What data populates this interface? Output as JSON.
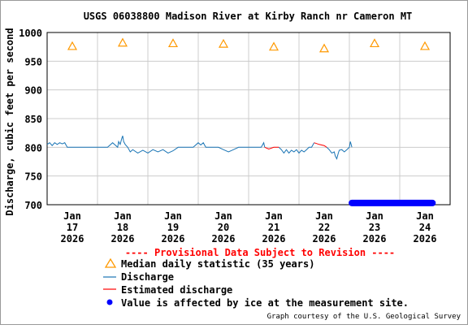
{
  "chart_data": {
    "type": "line",
    "title": "USGS 06038800 Madison River at Kirby Ranch nr Cameron MT",
    "xlabel": "",
    "ylabel": "Discharge, cubic feet per second",
    "ylim": [
      700,
      1000
    ],
    "yticks": [
      700,
      750,
      800,
      850,
      900,
      950,
      1000
    ],
    "xlim": [
      16.5,
      24.5
    ],
    "xticks": [
      {
        "x": 17,
        "lines": [
          "Jan",
          "17",
          "2026"
        ]
      },
      {
        "x": 18,
        "lines": [
          "Jan",
          "18",
          "2026"
        ]
      },
      {
        "x": 19,
        "lines": [
          "Jan",
          "19",
          "2026"
        ]
      },
      {
        "x": 20,
        "lines": [
          "Jan",
          "20",
          "2026"
        ]
      },
      {
        "x": 21,
        "lines": [
          "Jan",
          "21",
          "2026"
        ]
      },
      {
        "x": 22,
        "lines": [
          "Jan",
          "22",
          "2026"
        ]
      },
      {
        "x": 23,
        "lines": [
          "Jan",
          "23",
          "2026"
        ]
      },
      {
        "x": 24,
        "lines": [
          "Jan",
          "24",
          "2026"
        ]
      }
    ],
    "grid": true,
    "series": [
      {
        "name": "Median daily statistic (35 years)",
        "kind": "marker-triangle",
        "color": "#ff9900",
        "x": [
          17,
          18,
          19,
          20,
          21,
          22,
          23,
          24
        ],
        "y": [
          976,
          982,
          981,
          980,
          975,
          972,
          981,
          976
        ]
      },
      {
        "name": "Discharge",
        "kind": "line",
        "color": "#1a75b5",
        "x": [
          16.5,
          16.55,
          16.6,
          16.65,
          16.7,
          16.75,
          16.8,
          16.85,
          16.9,
          16.95,
          17.0,
          17.1,
          17.2,
          17.3,
          17.35,
          17.4,
          17.45,
          17.5,
          17.6,
          17.7,
          17.8,
          17.9,
          17.92,
          17.95,
          17.98,
          18.0,
          18.02,
          18.05,
          18.1,
          18.15,
          18.2,
          18.3,
          18.4,
          18.5,
          18.6,
          18.7,
          18.8,
          18.9,
          19.0,
          19.1,
          19.2,
          19.3,
          19.4,
          19.5,
          19.55,
          19.6,
          19.65,
          19.7,
          19.8,
          19.9,
          20.0,
          20.1,
          20.2,
          20.3,
          20.35,
          20.4,
          20.45,
          20.5,
          20.55,
          20.6,
          20.65,
          20.7,
          20.75,
          20.8,
          20.82
        ],
        "y": [
          805,
          808,
          803,
          808,
          805,
          808,
          806,
          808,
          800,
          800,
          800,
          800,
          800,
          800,
          800,
          800,
          800,
          800,
          800,
          800,
          808,
          800,
          810,
          805,
          815,
          820,
          810,
          805,
          800,
          792,
          796,
          790,
          795,
          790,
          796,
          792,
          796,
          790,
          794,
          800,
          800,
          800,
          800,
          808,
          804,
          808,
          800,
          800,
          800,
          800,
          796,
          792,
          796,
          800,
          800,
          800,
          800,
          800,
          800,
          800,
          800,
          800,
          800,
          808,
          800
        ]
      },
      {
        "name": "Discharge",
        "kind": "line",
        "color": "#1a75b5",
        "x": [
          21.1,
          21.15,
          21.2,
          21.25,
          21.3,
          21.35,
          21.4,
          21.45,
          21.5,
          21.55,
          21.6,
          21.65,
          21.7,
          21.75,
          21.8
        ],
        "y": [
          800,
          796,
          790,
          796,
          790,
          795,
          792,
          796,
          790,
          795,
          792,
          796,
          800,
          800,
          808
        ]
      },
      {
        "name": "Discharge",
        "kind": "line",
        "color": "#1a75b5",
        "x": [
          22.05,
          22.1,
          22.15,
          22.2,
          22.22,
          22.25,
          22.28,
          22.3,
          22.35,
          22.4,
          22.45,
          22.5,
          22.52,
          22.55
        ],
        "y": [
          800,
          796,
          790,
          792,
          785,
          780,
          790,
          795,
          796,
          792,
          796,
          800,
          810,
          800
        ]
      },
      {
        "name": "Estimated discharge",
        "kind": "line",
        "color": "#ff0000",
        "x": [
          20.82,
          20.9,
          21.0,
          21.1
        ],
        "y": [
          800,
          797,
          800,
          800
        ]
      },
      {
        "name": "Estimated discharge",
        "kind": "line",
        "color": "#ff0000",
        "x": [
          21.8,
          21.9,
          22.0,
          22.05
        ],
        "y": [
          808,
          805,
          803,
          800
        ]
      },
      {
        "name": "Value is affected by ice at the measurement site.",
        "kind": "ice-band",
        "color": "#0000ff",
        "x": [
          22.55,
          24.15
        ],
        "y": 703
      }
    ]
  },
  "provisional_text": "---- Provisional Data Subject to Revision ----",
  "legend": {
    "items": [
      {
        "label": "Median daily statistic (35 years)",
        "symbol": "triangle",
        "color": "#ff9900"
      },
      {
        "label": "Discharge",
        "symbol": "line",
        "color": "#1a75b5"
      },
      {
        "label": "Estimated discharge",
        "symbol": "line",
        "color": "#ff0000"
      },
      {
        "label": "Value is affected by ice at the measurement site.",
        "symbol": "dot",
        "color": "#0000ff"
      }
    ]
  },
  "credit": "Graph courtesy of the U.S. Geological Survey"
}
